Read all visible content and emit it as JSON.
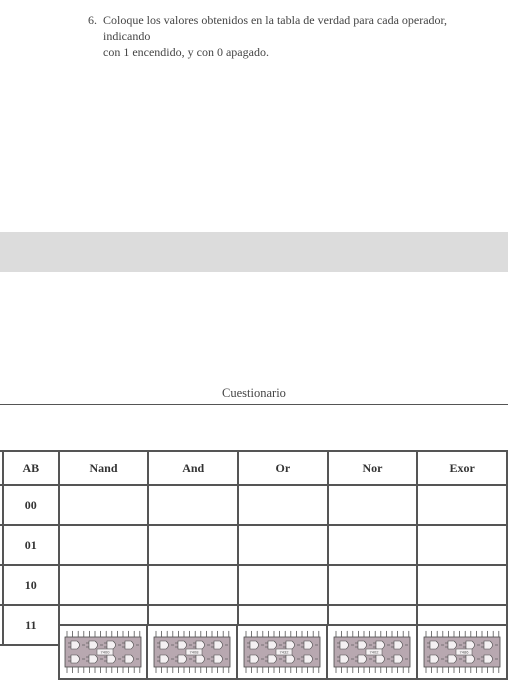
{
  "instruction": {
    "number": "6.",
    "text_line1": "Coloque los valores obtenidos en la tabla de verdad para cada operador, indicando",
    "text_line2": "con 1 encendido, y con 0 apagado."
  },
  "greybar_color": "#dcdcdc",
  "section_title": "Cuestionario",
  "table": {
    "row_label_partial": "",
    "header": {
      "ab": "AB",
      "ops": [
        "Nand",
        "And",
        "Or",
        "Nor",
        "Exor"
      ]
    },
    "inputs": [
      "00",
      "01",
      "10",
      "11"
    ],
    "left_partial_last": "3"
  },
  "chip": {
    "body_color": "#b8a8b0",
    "outline": "#4a4a4a",
    "pin_color": "#555555",
    "gate_fill": "#f4f0f2",
    "labels": [
      "7400",
      "7408",
      "7432",
      "7402",
      "7486"
    ]
  },
  "colors": {
    "text": "#444444",
    "border": "#555555",
    "background": "#ffffff"
  }
}
